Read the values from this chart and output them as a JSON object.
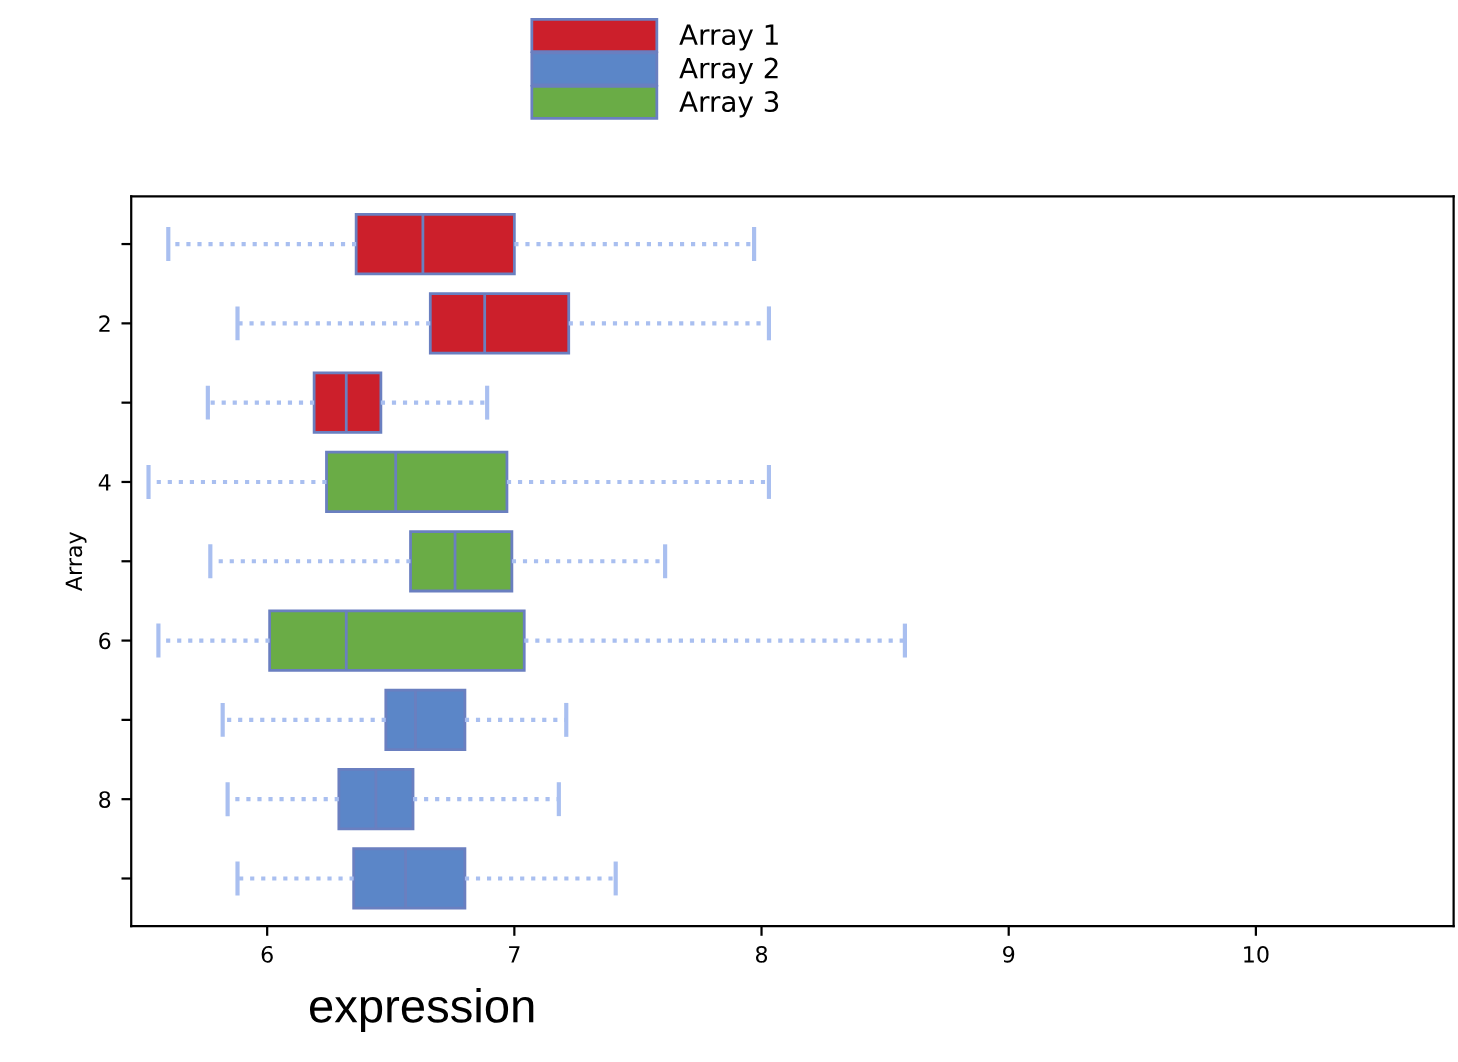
{
  "chart_data": {
    "type": "box",
    "orientation": "horizontal",
    "xlabel": "expression",
    "ylabel": "Array",
    "categories": [
      null,
      "2",
      null,
      "4",
      null,
      "6",
      null,
      "8",
      null
    ],
    "xlim": [
      5.45,
      10.8
    ],
    "xticks": [
      6,
      7,
      8,
      9,
      10
    ],
    "legend": "top",
    "grid": false,
    "series": [
      {
        "name": "Array 1",
        "color": "#cc1f2b",
        "boxes": [
          {
            "low": 5.6,
            "q1": 6.36,
            "median": 6.63,
            "q3": 7.0,
            "high": 7.97
          },
          {
            "low": 5.88,
            "q1": 6.66,
            "median": 6.88,
            "q3": 7.22,
            "high": 8.03
          },
          {
            "low": 5.76,
            "q1": 6.19,
            "median": 6.32,
            "q3": 6.46,
            "high": 6.89
          },
          null,
          null,
          null,
          null,
          null,
          null
        ]
      },
      {
        "name": "Array 2",
        "color": "#5b86c8",
        "boxes": [
          null,
          null,
          null,
          null,
          null,
          null,
          {
            "low": 5.82,
            "q1": 6.48,
            "median": 6.6,
            "q3": 6.8,
            "high": 7.21
          },
          {
            "low": 5.84,
            "q1": 6.29,
            "median": 6.44,
            "q3": 6.59,
            "high": 7.18
          },
          {
            "low": 5.88,
            "q1": 6.35,
            "median": 6.56,
            "q3": 6.8,
            "high": 7.41
          }
        ]
      },
      {
        "name": "Array 3",
        "color": "#6aac46",
        "boxes": [
          null,
          null,
          null,
          {
            "low": 5.52,
            "q1": 6.24,
            "median": 6.52,
            "q3": 6.97,
            "high": 8.03
          },
          {
            "low": 5.77,
            "q1": 6.58,
            "median": 6.76,
            "q3": 6.99,
            "high": 7.61
          },
          {
            "low": 5.56,
            "q1": 6.01,
            "median": 6.32,
            "q3": 7.04,
            "high": 8.58
          },
          null,
          null,
          null
        ]
      }
    ]
  }
}
